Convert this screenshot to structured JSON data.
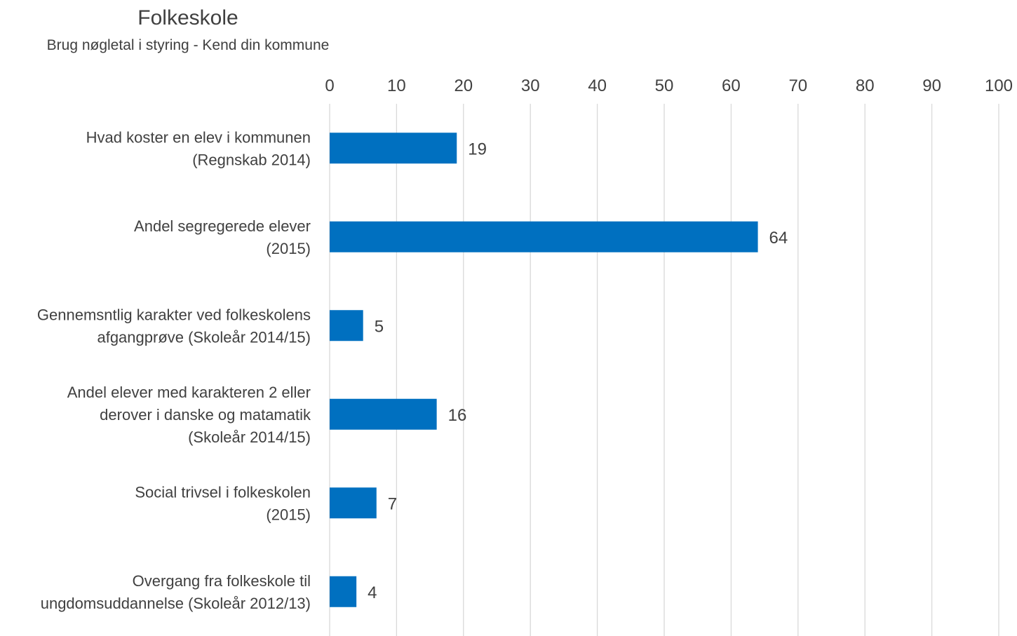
{
  "chart_data": {
    "type": "bar",
    "orientation": "horizontal",
    "title": "Folkeskole",
    "subtitle": "Brug nøgletal i styring - Kend din kommune",
    "xlim": [
      0,
      100
    ],
    "ticks": [
      0,
      10,
      20,
      30,
      40,
      50,
      60,
      70,
      80,
      90,
      100
    ],
    "axis_position": "top",
    "grid": true,
    "legend": "none",
    "bar_color": "#0070c0",
    "categories": [
      [
        "Hvad koster en elev i kommunen",
        "(Regnskab 2014)"
      ],
      [
        "Andel segregerede elever",
        "(2015)"
      ],
      [
        "Gennemsntlig karakter ved folkeskolens",
        "afgangprøve (Skoleår 2014/15)"
      ],
      [
        "Andel elever med karakteren 2 eller",
        "derover i danske og matamatik",
        "(Skoleår 2014/15)"
      ],
      [
        "Social trivsel i folkeskolen",
        "(2015)"
      ],
      [
        "Overgang fra folkeskole til",
        "ungdomsuddannelse (Skoleår 2012/13)"
      ]
    ],
    "values": [
      19,
      64,
      5,
      16,
      7,
      4
    ]
  }
}
